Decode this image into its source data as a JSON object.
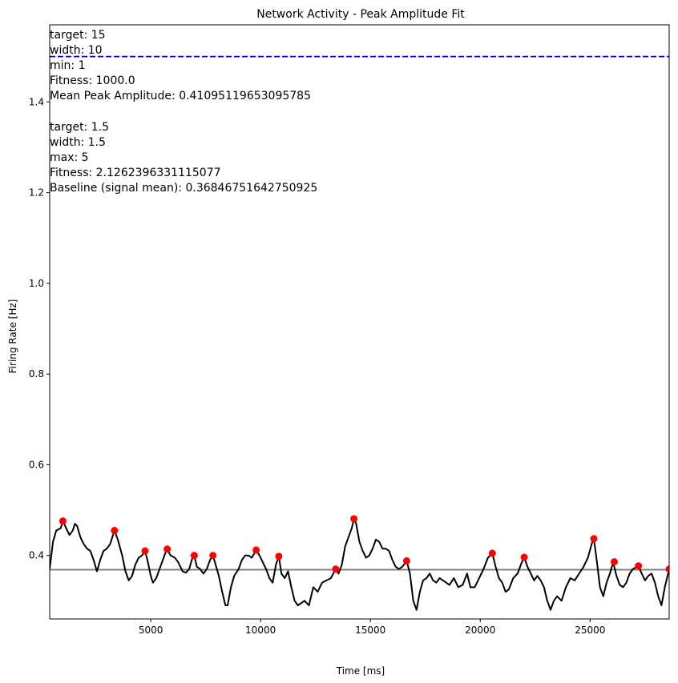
{
  "chart_data": {
    "type": "line",
    "title": "Network Activity - Peak Amplitude Fit",
    "xlabel": "Time [ms]",
    "ylabel": "Firing Rate [Hz]",
    "xlim": [
      400,
      28600
    ],
    "ylim": [
      0.26,
      1.57
    ],
    "x_ticks": [
      5000,
      10000,
      15000,
      20000,
      25000
    ],
    "y_ticks": [
      0.4,
      0.6,
      0.8,
      1.0,
      1.2,
      1.4
    ],
    "x_tick_labels": [
      "5000",
      "10000",
      "15000",
      "20000",
      "25000"
    ],
    "y_tick_labels": [
      "0.4",
      "0.6",
      "0.8",
      "1.0",
      "1.2",
      "1.4"
    ],
    "grid": false,
    "series": [
      {
        "role": "signal",
        "color": "#000000",
        "points": [
          [
            400,
            0.37
          ],
          [
            550,
            0.43
          ],
          [
            700,
            0.455
          ],
          [
            900,
            0.46
          ],
          [
            1000,
            0.476
          ],
          [
            1150,
            0.46
          ],
          [
            1300,
            0.445
          ],
          [
            1450,
            0.455
          ],
          [
            1550,
            0.47
          ],
          [
            1650,
            0.465
          ],
          [
            1800,
            0.44
          ],
          [
            1950,
            0.425
          ],
          [
            2100,
            0.415
          ],
          [
            2250,
            0.41
          ],
          [
            2400,
            0.39
          ],
          [
            2550,
            0.365
          ],
          [
            2700,
            0.39
          ],
          [
            2850,
            0.41
          ],
          [
            3000,
            0.415
          ],
          [
            3150,
            0.425
          ],
          [
            3350,
            0.455
          ],
          [
            3500,
            0.435
          ],
          [
            3700,
            0.4
          ],
          [
            3850,
            0.365
          ],
          [
            4000,
            0.345
          ],
          [
            4150,
            0.355
          ],
          [
            4300,
            0.38
          ],
          [
            4450,
            0.395
          ],
          [
            4600,
            0.4
          ],
          [
            4740,
            0.41
          ],
          [
            4850,
            0.39
          ],
          [
            5000,
            0.355
          ],
          [
            5100,
            0.34
          ],
          [
            5250,
            0.35
          ],
          [
            5400,
            0.37
          ],
          [
            5550,
            0.39
          ],
          [
            5700,
            0.41
          ],
          [
            5750,
            0.414
          ],
          [
            5900,
            0.4
          ],
          [
            6100,
            0.395
          ],
          [
            6250,
            0.385
          ],
          [
            6450,
            0.365
          ],
          [
            6600,
            0.362
          ],
          [
            6750,
            0.37
          ],
          [
            6900,
            0.395
          ],
          [
            6980,
            0.4
          ],
          [
            7100,
            0.375
          ],
          [
            7250,
            0.37
          ],
          [
            7400,
            0.36
          ],
          [
            7550,
            0.37
          ],
          [
            7700,
            0.39
          ],
          [
            7830,
            0.4
          ],
          [
            7950,
            0.38
          ],
          [
            8100,
            0.355
          ],
          [
            8250,
            0.32
          ],
          [
            8400,
            0.29
          ],
          [
            8500,
            0.29
          ],
          [
            8650,
            0.33
          ],
          [
            8800,
            0.355
          ],
          [
            9000,
            0.37
          ],
          [
            9150,
            0.39
          ],
          [
            9300,
            0.4
          ],
          [
            9450,
            0.4
          ],
          [
            9600,
            0.395
          ],
          [
            9800,
            0.412
          ],
          [
            9950,
            0.4
          ],
          [
            10100,
            0.385
          ],
          [
            10250,
            0.37
          ],
          [
            10400,
            0.35
          ],
          [
            10550,
            0.34
          ],
          [
            10700,
            0.38
          ],
          [
            10830,
            0.398
          ],
          [
            10950,
            0.36
          ],
          [
            11100,
            0.35
          ],
          [
            11250,
            0.365
          ],
          [
            11400,
            0.33
          ],
          [
            11550,
            0.3
          ],
          [
            11700,
            0.29
          ],
          [
            11850,
            0.295
          ],
          [
            12000,
            0.3
          ],
          [
            12200,
            0.29
          ],
          [
            12400,
            0.33
          ],
          [
            12600,
            0.32
          ],
          [
            12800,
            0.34
          ],
          [
            13000,
            0.345
          ],
          [
            13200,
            0.35
          ],
          [
            13420,
            0.37
          ],
          [
            13550,
            0.36
          ],
          [
            13700,
            0.38
          ],
          [
            13850,
            0.42
          ],
          [
            14000,
            0.44
          ],
          [
            14150,
            0.46
          ],
          [
            14250,
            0.481
          ],
          [
            14350,
            0.47
          ],
          [
            14500,
            0.43
          ],
          [
            14650,
            0.41
          ],
          [
            14800,
            0.395
          ],
          [
            14950,
            0.4
          ],
          [
            15100,
            0.415
          ],
          [
            15250,
            0.435
          ],
          [
            15400,
            0.43
          ],
          [
            15550,
            0.415
          ],
          [
            15700,
            0.415
          ],
          [
            15850,
            0.41
          ],
          [
            16000,
            0.39
          ],
          [
            16150,
            0.375
          ],
          [
            16300,
            0.37
          ],
          [
            16450,
            0.375
          ],
          [
            16650,
            0.388
          ],
          [
            16800,
            0.36
          ],
          [
            16950,
            0.3
          ],
          [
            17100,
            0.28
          ],
          [
            17250,
            0.32
          ],
          [
            17400,
            0.345
          ],
          [
            17550,
            0.35
          ],
          [
            17700,
            0.36
          ],
          [
            17850,
            0.345
          ],
          [
            18000,
            0.34
          ],
          [
            18150,
            0.35
          ],
          [
            18300,
            0.345
          ],
          [
            18450,
            0.34
          ],
          [
            18600,
            0.335
          ],
          [
            18800,
            0.35
          ],
          [
            19000,
            0.33
          ],
          [
            19200,
            0.335
          ],
          [
            19400,
            0.36
          ],
          [
            19550,
            0.33
          ],
          [
            19750,
            0.33
          ],
          [
            19950,
            0.35
          ],
          [
            20150,
            0.37
          ],
          [
            20350,
            0.395
          ],
          [
            20550,
            0.405
          ],
          [
            20700,
            0.375
          ],
          [
            20850,
            0.35
          ],
          [
            21000,
            0.34
          ],
          [
            21150,
            0.32
          ],
          [
            21300,
            0.325
          ],
          [
            21500,
            0.35
          ],
          [
            21700,
            0.36
          ],
          [
            21850,
            0.38
          ],
          [
            22000,
            0.396
          ],
          [
            22150,
            0.375
          ],
          [
            22300,
            0.36
          ],
          [
            22450,
            0.345
          ],
          [
            22600,
            0.355
          ],
          [
            22750,
            0.345
          ],
          [
            22900,
            0.33
          ],
          [
            23050,
            0.3
          ],
          [
            23200,
            0.28
          ],
          [
            23350,
            0.3
          ],
          [
            23500,
            0.31
          ],
          [
            23700,
            0.3
          ],
          [
            23900,
            0.33
          ],
          [
            24100,
            0.35
          ],
          [
            24300,
            0.345
          ],
          [
            24500,
            0.36
          ],
          [
            24700,
            0.375
          ],
          [
            24900,
            0.395
          ],
          [
            25100,
            0.43
          ],
          [
            25170,
            0.437
          ],
          [
            25300,
            0.39
          ],
          [
            25450,
            0.33
          ],
          [
            25600,
            0.31
          ],
          [
            25750,
            0.34
          ],
          [
            25900,
            0.36
          ],
          [
            26050,
            0.385
          ],
          [
            26200,
            0.355
          ],
          [
            26350,
            0.335
          ],
          [
            26500,
            0.33
          ],
          [
            26650,
            0.34
          ],
          [
            26800,
            0.36
          ],
          [
            26950,
            0.37
          ],
          [
            27200,
            0.377
          ],
          [
            27350,
            0.36
          ],
          [
            27500,
            0.345
          ],
          [
            27650,
            0.355
          ],
          [
            27800,
            0.36
          ],
          [
            27950,
            0.34
          ],
          [
            28100,
            0.31
          ],
          [
            28250,
            0.29
          ],
          [
            28400,
            0.33
          ],
          [
            28600,
            0.37
          ]
        ]
      },
      {
        "role": "peaks",
        "color": "#ff0000",
        "points": [
          [
            1000,
            0.476
          ],
          [
            3350,
            0.455
          ],
          [
            4740,
            0.41
          ],
          [
            5750,
            0.414
          ],
          [
            6980,
            0.4
          ],
          [
            7830,
            0.4
          ],
          [
            9800,
            0.412
          ],
          [
            10830,
            0.398
          ],
          [
            13420,
            0.37
          ],
          [
            14250,
            0.481
          ],
          [
            16650,
            0.388
          ],
          [
            20550,
            0.405
          ],
          [
            22000,
            0.396
          ],
          [
            25170,
            0.437
          ],
          [
            26100,
            0.386
          ],
          [
            27200,
            0.377
          ],
          [
            28600,
            0.37
          ]
        ]
      },
      {
        "role": "baseline",
        "color": "#808080",
        "y": 0.3685
      },
      {
        "role": "target",
        "color": "#0000cc",
        "style": "dashed",
        "y": 1.5
      }
    ]
  },
  "annotations": {
    "block1": [
      "target: 15",
      "width: 10",
      "min: 1",
      "Fitness: 1000.0",
      "Mean Peak Amplitude: 0.41095119653095785"
    ],
    "block2": [
      "target: 1.5",
      "width: 1.5",
      "max: 5",
      "Fitness: 2.1262396331115077",
      "Baseline (signal mean): 0.36846751642750925"
    ]
  }
}
